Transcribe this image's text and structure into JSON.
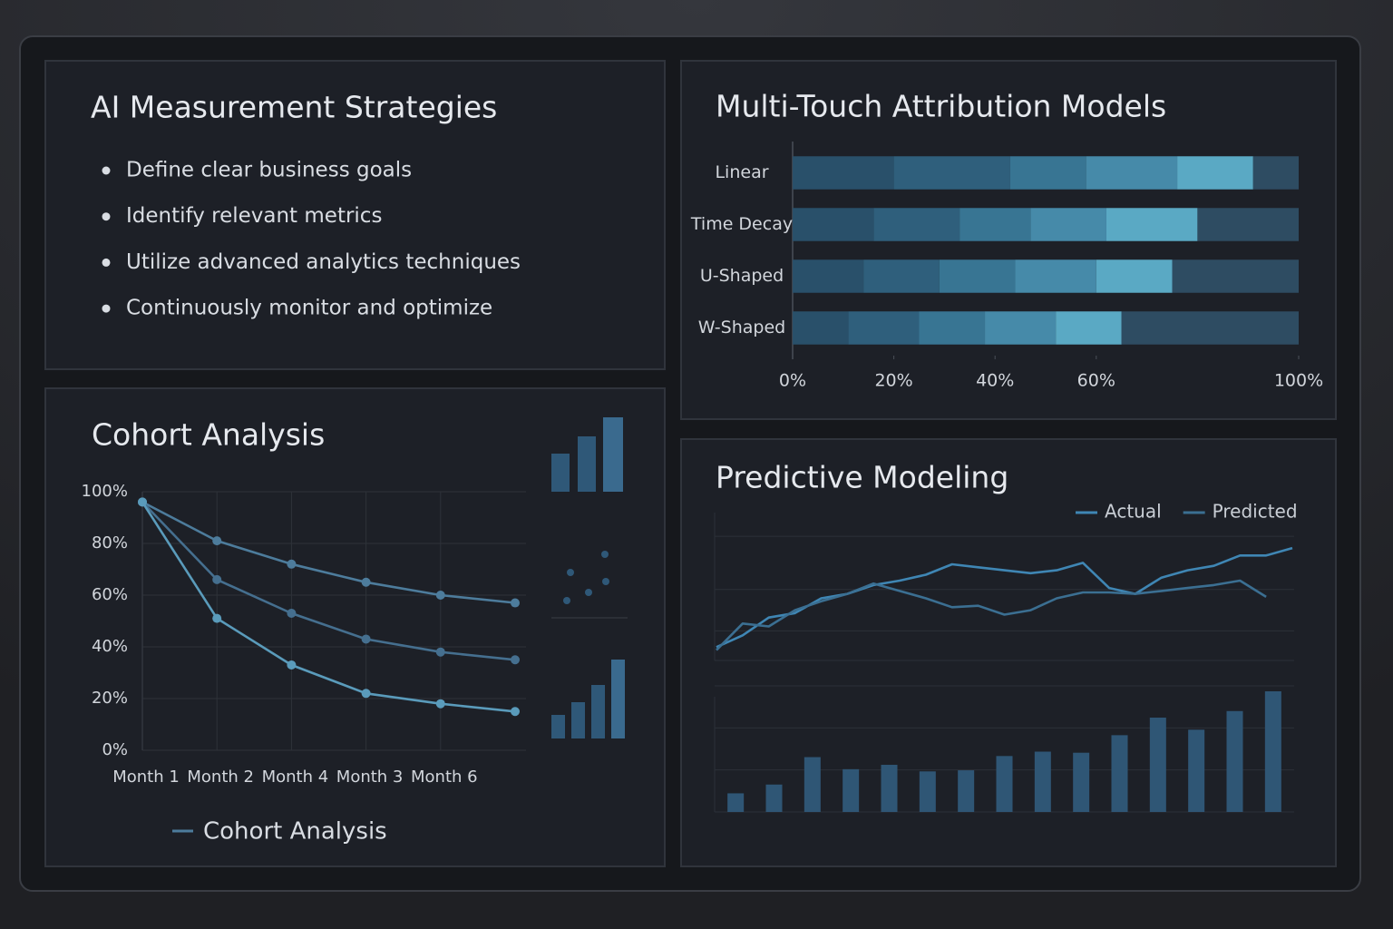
{
  "strategies": {
    "title": "AI Measurement Strategies",
    "items": [
      "Define clear business goals",
      "Identify relevant metrics",
      "Utilize advanced analytics techniques",
      "Continuously monitor and optimize"
    ]
  },
  "chart_data": [
    {
      "type": "bar",
      "orientation": "horizontal",
      "stacked": true,
      "title": "Multi-Touch Attribution Models",
      "categories": [
        "Linear",
        "Time Decay",
        "U-Shaped",
        "W-Shaped"
      ],
      "series": [
        {
          "color": "#29506a",
          "values": [
            20,
            16,
            14,
            11
          ]
        },
        {
          "color": "#2f5f7c",
          "values": [
            23,
            17,
            15,
            14
          ]
        },
        {
          "color": "#387593",
          "values": [
            15,
            14,
            15,
            13
          ]
        },
        {
          "color": "#468aa9",
          "values": [
            18,
            15,
            16,
            14
          ]
        },
        {
          "color": "#5aa9c4",
          "values": [
            15,
            18,
            15,
            13
          ]
        },
        {
          "color": "#2e4c62",
          "values": [
            9,
            20,
            25,
            35
          ]
        }
      ],
      "xlim": [
        0,
        100
      ],
      "xticks": [
        {
          "value": 0,
          "label": "0%"
        },
        {
          "value": 20,
          "label": "20%"
        },
        {
          "value": 40,
          "label": "40%"
        },
        {
          "value": 60,
          "label": "60%"
        },
        {
          "value": 100,
          "label": "100%"
        }
      ]
    },
    {
      "type": "line",
      "title": "Cohort Analysis",
      "legend_label": "Cohort Analysis",
      "categories": [
        "Month 1",
        "Month 2",
        "Month 4",
        "Month 3",
        "Month 6",
        null
      ],
      "series": [
        {
          "color": "#4d7c9c",
          "values": [
            96,
            81,
            72,
            65,
            60,
            57
          ]
        },
        {
          "color": "#456f8f",
          "values": [
            96,
            66,
            53,
            43,
            38,
            35
          ]
        },
        {
          "color": "#5a9bbb",
          "values": [
            96,
            51,
            33,
            22,
            18,
            15
          ]
        }
      ],
      "ylim": [
        0,
        100
      ],
      "yticks": [
        {
          "value": 0,
          "label": "0%"
        },
        {
          "value": 20,
          "label": "20%"
        },
        {
          "value": 40,
          "label": "40%"
        },
        {
          "value": 60,
          "label": "60%"
        },
        {
          "value": 80,
          "label": "80%"
        },
        {
          "value": 100,
          "label": "100%"
        }
      ],
      "grid": true,
      "markers": true
    },
    {
      "type": "line",
      "title": "Predictive Modeling",
      "legend": "top-right",
      "series": [
        {
          "name": "Actual",
          "color": "#3f86b4",
          "values": [
            9,
            17,
            29,
            32,
            42,
            45,
            51,
            54,
            58,
            65,
            63,
            61,
            59,
            61,
            66,
            49,
            45,
            56,
            61,
            64,
            71,
            71,
            76
          ]
        },
        {
          "name": "Predicted",
          "color": "#3b6f92",
          "values": [
            7,
            25,
            23,
            34,
            40,
            45,
            52,
            47,
            42,
            36,
            37,
            31,
            34,
            42,
            46,
            46,
            45,
            47,
            49,
            51,
            54,
            43,
            null
          ]
        }
      ],
      "ylim": [
        0,
        100
      ]
    },
    {
      "type": "bar",
      "orientation": "vertical",
      "color": "#2f5675",
      "values": [
        17,
        25,
        50,
        39,
        43,
        37,
        38,
        51,
        55,
        54,
        70,
        86,
        75,
        92,
        110
      ],
      "ylim": [
        0,
        110
      ]
    }
  ]
}
